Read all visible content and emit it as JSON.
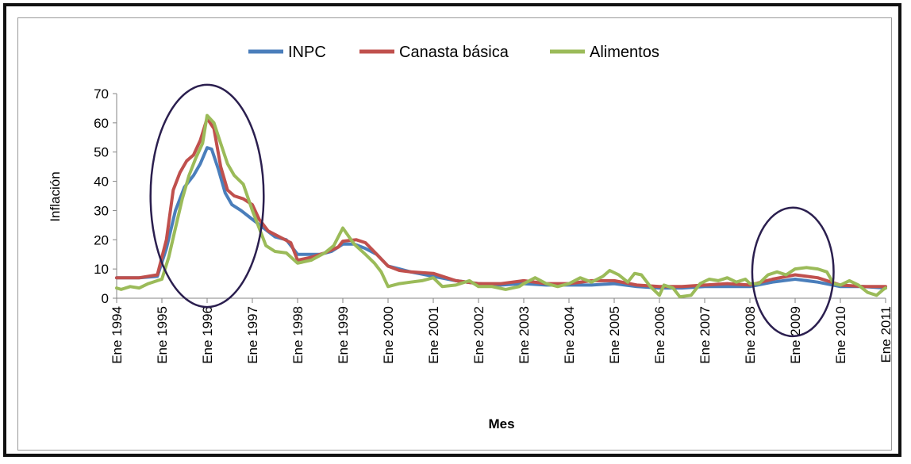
{
  "chart_data": {
    "type": "line",
    "title": "",
    "xlabel": "Mes",
    "ylabel": "Inflación",
    "ylim": [
      0,
      70
    ],
    "yticks": [
      0,
      10,
      20,
      30,
      40,
      50,
      60,
      70
    ],
    "xlim": [
      1994.0,
      2011.0
    ],
    "xtick_labels": [
      "Ene 1994",
      "Ene 1995",
      "Ene 1996",
      "Ene 1997",
      "Ene 1998",
      "Ene 1999",
      "Ene 2000",
      "Ene 2001",
      "Ene 2002",
      "Ene 2003",
      "Ene 2004",
      "Ene 2005",
      "Ene 2006",
      "Ene 2007",
      "Ene 2008",
      "Ene 2009",
      "Ene 2010",
      "Ene 2011"
    ],
    "legend_position": "top",
    "grid": false,
    "series": [
      {
        "name": "INPC",
        "color": "#4a7ebb",
        "points": [
          [
            1994.0,
            7
          ],
          [
            1994.5,
            7
          ],
          [
            1994.9,
            7.5
          ],
          [
            1995.1,
            17
          ],
          [
            1995.3,
            30
          ],
          [
            1995.5,
            38
          ],
          [
            1995.7,
            42
          ],
          [
            1995.85,
            46
          ],
          [
            1996.0,
            51.5
          ],
          [
            1996.1,
            51
          ],
          [
            1996.25,
            44
          ],
          [
            1996.4,
            36
          ],
          [
            1996.55,
            32
          ],
          [
            1996.75,
            30
          ],
          [
            1997.0,
            27
          ],
          [
            1997.25,
            24
          ],
          [
            1997.5,
            21
          ],
          [
            1997.75,
            20
          ],
          [
            1998.0,
            15
          ],
          [
            1998.5,
            15
          ],
          [
            1998.75,
            16
          ],
          [
            1999.0,
            18.5
          ],
          [
            1999.25,
            18.5
          ],
          [
            1999.5,
            17
          ],
          [
            1999.75,
            15
          ],
          [
            2000.0,
            11
          ],
          [
            2000.25,
            10
          ],
          [
            2000.5,
            9
          ],
          [
            2001.0,
            7.5
          ],
          [
            2001.5,
            6
          ],
          [
            2002.0,
            5
          ],
          [
            2002.5,
            4.5
          ],
          [
            2003.0,
            5
          ],
          [
            2003.5,
            4.5
          ],
          [
            2004.0,
            4.5
          ],
          [
            2004.5,
            4.5
          ],
          [
            2005.0,
            5
          ],
          [
            2005.5,
            4
          ],
          [
            2006.0,
            3.5
          ],
          [
            2006.5,
            3.5
          ],
          [
            2007.0,
            4
          ],
          [
            2007.5,
            4
          ],
          [
            2008.0,
            4
          ],
          [
            2008.5,
            5.5
          ],
          [
            2009.0,
            6.5
          ],
          [
            2009.5,
            5.5
          ],
          [
            2010.0,
            4
          ],
          [
            2010.5,
            4
          ],
          [
            2011.0,
            3.5
          ]
        ]
      },
      {
        "name": "Canasta básica",
        "color": "#c0504d",
        "points": [
          [
            1994.0,
            7
          ],
          [
            1994.5,
            7
          ],
          [
            1994.9,
            8
          ],
          [
            1995.1,
            20
          ],
          [
            1995.25,
            37
          ],
          [
            1995.4,
            43
          ],
          [
            1995.55,
            47
          ],
          [
            1995.7,
            49
          ],
          [
            1995.85,
            54
          ],
          [
            1996.0,
            61.5
          ],
          [
            1996.15,
            58
          ],
          [
            1996.3,
            45
          ],
          [
            1996.45,
            37
          ],
          [
            1996.6,
            35
          ],
          [
            1996.8,
            34
          ],
          [
            1997.0,
            32
          ],
          [
            1997.15,
            27
          ],
          [
            1997.35,
            23
          ],
          [
            1997.6,
            21
          ],
          [
            1997.85,
            19
          ],
          [
            1998.0,
            13
          ],
          [
            1998.3,
            14
          ],
          [
            1998.6,
            15.5
          ],
          [
            1998.9,
            17.5
          ],
          [
            1999.0,
            19.5
          ],
          [
            1999.3,
            20
          ],
          [
            1999.5,
            19
          ],
          [
            1999.75,
            15
          ],
          [
            2000.0,
            11
          ],
          [
            2000.25,
            9.5
          ],
          [
            2000.5,
            9
          ],
          [
            2001.0,
            8.5
          ],
          [
            2001.5,
            6
          ],
          [
            2002.0,
            5
          ],
          [
            2002.5,
            5
          ],
          [
            2003.0,
            6
          ],
          [
            2003.5,
            5
          ],
          [
            2004.0,
            5
          ],
          [
            2004.5,
            6
          ],
          [
            2005.0,
            6
          ],
          [
            2005.5,
            4.5
          ],
          [
            2006.0,
            4
          ],
          [
            2006.5,
            4
          ],
          [
            2007.0,
            4.5
          ],
          [
            2007.5,
            5
          ],
          [
            2008.0,
            4.5
          ],
          [
            2008.5,
            6.5
          ],
          [
            2009.0,
            8
          ],
          [
            2009.5,
            7
          ],
          [
            2010.0,
            4.5
          ],
          [
            2010.5,
            4
          ],
          [
            2011.0,
            4
          ]
        ]
      },
      {
        "name": "Alimentos",
        "color": "#9bbb59",
        "points": [
          [
            1994.0,
            3.5
          ],
          [
            1994.1,
            3
          ],
          [
            1994.3,
            4
          ],
          [
            1994.5,
            3.5
          ],
          [
            1994.7,
            5
          ],
          [
            1994.9,
            6
          ],
          [
            1995.0,
            6.5
          ],
          [
            1995.15,
            14
          ],
          [
            1995.3,
            24
          ],
          [
            1995.45,
            34
          ],
          [
            1995.6,
            42
          ],
          [
            1995.75,
            48
          ],
          [
            1995.9,
            53
          ],
          [
            1996.0,
            62.5
          ],
          [
            1996.15,
            60
          ],
          [
            1996.3,
            53
          ],
          [
            1996.45,
            46
          ],
          [
            1996.6,
            42
          ],
          [
            1996.8,
            39
          ],
          [
            1997.0,
            30
          ],
          [
            1997.15,
            24
          ],
          [
            1997.3,
            18
          ],
          [
            1997.5,
            16
          ],
          [
            1997.75,
            15.5
          ],
          [
            1998.0,
            12
          ],
          [
            1998.3,
            13
          ],
          [
            1998.6,
            15.5
          ],
          [
            1998.8,
            18
          ],
          [
            1999.0,
            24
          ],
          [
            1999.25,
            18.5
          ],
          [
            1999.5,
            15
          ],
          [
            1999.7,
            12
          ],
          [
            1999.85,
            9
          ],
          [
            2000.0,
            4
          ],
          [
            2000.25,
            5
          ],
          [
            2000.5,
            5.5
          ],
          [
            2000.75,
            6
          ],
          [
            2001.0,
            7
          ],
          [
            2001.2,
            4
          ],
          [
            2001.5,
            4.5
          ],
          [
            2001.8,
            6
          ],
          [
            2002.0,
            4
          ],
          [
            2002.3,
            4
          ],
          [
            2002.6,
            3
          ],
          [
            2002.9,
            4
          ],
          [
            2003.0,
            5
          ],
          [
            2003.25,
            7
          ],
          [
            2003.5,
            5
          ],
          [
            2003.75,
            4
          ],
          [
            2004.0,
            5
          ],
          [
            2004.25,
            7
          ],
          [
            2004.5,
            5.5
          ],
          [
            2004.75,
            7.5
          ],
          [
            2004.9,
            9.5
          ],
          [
            2005.1,
            8
          ],
          [
            2005.3,
            5.5
          ],
          [
            2005.45,
            8.5
          ],
          [
            2005.6,
            8
          ],
          [
            2005.8,
            4
          ],
          [
            2006.0,
            1
          ],
          [
            2006.1,
            4.5
          ],
          [
            2006.3,
            3.5
          ],
          [
            2006.45,
            0.5
          ],
          [
            2006.7,
            1
          ],
          [
            2006.9,
            5
          ],
          [
            2007.1,
            6.5
          ],
          [
            2007.3,
            6
          ],
          [
            2007.5,
            7
          ],
          [
            2007.7,
            5.5
          ],
          [
            2007.9,
            6.5
          ],
          [
            2008.0,
            5
          ],
          [
            2008.2,
            5
          ],
          [
            2008.4,
            8
          ],
          [
            2008.6,
            9
          ],
          [
            2008.8,
            8
          ],
          [
            2009.0,
            10
          ],
          [
            2009.25,
            10.5
          ],
          [
            2009.5,
            10
          ],
          [
            2009.7,
            9
          ],
          [
            2009.85,
            5
          ],
          [
            2010.0,
            4.5
          ],
          [
            2010.2,
            6
          ],
          [
            2010.4,
            4.5
          ],
          [
            2010.6,
            2
          ],
          [
            2010.8,
            1
          ],
          [
            2010.95,
            3
          ],
          [
            2011.0,
            3.5
          ]
        ]
      }
    ],
    "annotations": [
      {
        "type": "ellipse",
        "center": [
          1996.0,
          35
        ],
        "rx_years": 1.25,
        "ry_data": 38,
        "color": "#2b1f4f"
      },
      {
        "type": "ellipse",
        "center": [
          2008.95,
          9
        ],
        "rx_years": 0.9,
        "ry_data": 22,
        "color": "#2b1f4f"
      }
    ]
  }
}
